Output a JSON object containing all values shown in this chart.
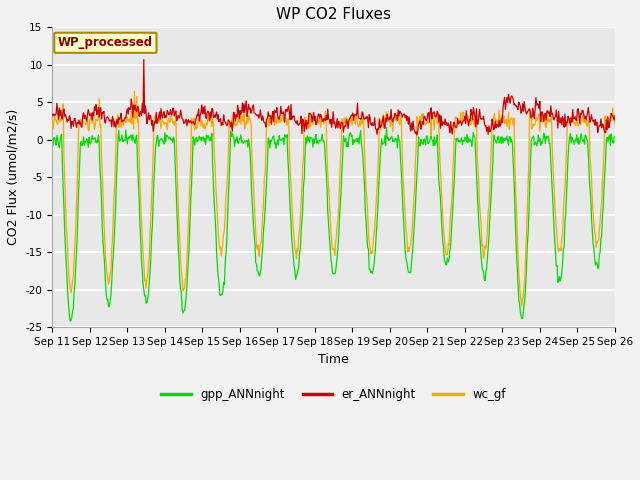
{
  "title": "WP CO2 Fluxes",
  "xlabel": "Time",
  "ylabel": "CO2 Flux (umol/m2/s)",
  "ylim": [
    -25,
    15
  ],
  "xtick_labels": [
    "Sep 11",
    "Sep 12",
    "Sep 13",
    "Sep 14",
    "Sep 15",
    "Sep 16",
    "Sep 17",
    "Sep 18",
    "Sep 19",
    "Sep 20",
    "Sep 21",
    "Sep 22",
    "Sep 23",
    "Sep 24",
    "Sep 25",
    "Sep 26"
  ],
  "ytick_values": [
    -25,
    -20,
    -15,
    -10,
    -5,
    0,
    5,
    10,
    15
  ],
  "legend_entries": [
    "gpp_ANNnight",
    "er_ANNnight",
    "wc_gf"
  ],
  "legend_colors": [
    "#00dd00",
    "#cc0000",
    "#ffa500"
  ],
  "line_colors": {
    "gpp": "#00dd00",
    "er": "#cc0000",
    "wc": "#ffa500"
  },
  "annotation_text": "WP_processed",
  "annotation_color": "#880000",
  "annotation_bg": "#ffffcc",
  "annotation_border": "#aa8800",
  "fig_bg": "#f2f2f2",
  "plot_bg": "#e8e8e8",
  "title_fontsize": 11,
  "label_fontsize": 9,
  "tick_fontsize": 7.5,
  "n_points_per_day": 48,
  "n_days": 15,
  "day_gpp_depth": [
    -24,
    -22,
    -22,
    -23,
    -21,
    -18,
    -18,
    -18,
    -18,
    -18,
    -17,
    -18,
    -24,
    -19,
    -17
  ],
  "day_er_mean": [
    3.0,
    3.0,
    3.5,
    3.0,
    3.0,
    3.5,
    3.0,
    2.5,
    2.5,
    2.5,
    2.5,
    2.5,
    4.5,
    3.0,
    2.5
  ],
  "day_wc_depth": [
    -20,
    -19,
    -19,
    -20,
    -15,
    -15,
    -15,
    -15,
    -15,
    -15,
    -15,
    -15,
    -22,
    -15,
    -14
  ]
}
